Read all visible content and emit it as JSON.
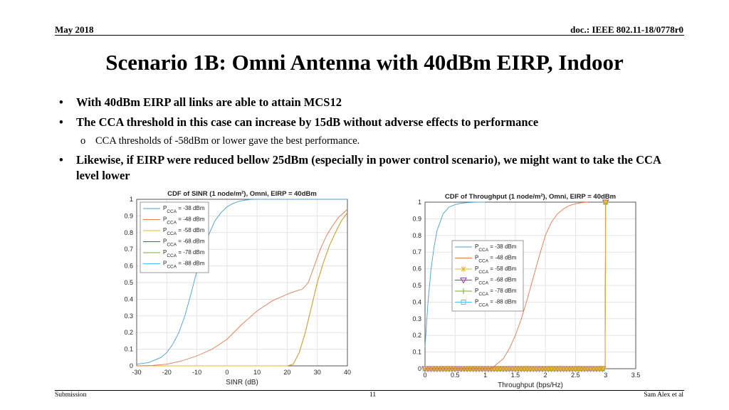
{
  "header": {
    "left": "May 2018",
    "right": "doc.: IEEE 802.11-18/0778r0"
  },
  "title": "Scenario 1B: Omni Antenna with 40dBm EIRP, Indoor",
  "bullets": [
    {
      "marker": "•",
      "text": "With 40dBm EIRP all links are able to attain MCS12"
    },
    {
      "marker": "•",
      "text": "The CCA threshold in this case can increase by 15dB without adverse effects to performance"
    },
    {
      "marker": "o",
      "text": "CCA thresholds of -58dBm or lower gave the best performance."
    },
    {
      "marker": "•",
      "text": "Likewise, if EIRP were reduced bellow 25dBm (especially in power control scenario), we might want to take the CCA level lower"
    }
  ],
  "footer": {
    "left": "Submission",
    "page": "11",
    "right": "Sam Alex et al"
  },
  "colors": [
    "#4c9ed1",
    "#e07b4f",
    "#e6b72b",
    "#8a3fa0",
    "#77ac30",
    "#4dbeee"
  ],
  "chart_data": [
    {
      "type": "line",
      "title": "CDF of SINR (1 node/m²), Omni, EIRP = 40dBm",
      "xlabel": "SINR (dB)",
      "ylabel": "",
      "xlim": [
        -30,
        40
      ],
      "ylim": [
        0,
        1
      ],
      "xticks": [
        -30,
        -20,
        -10,
        0,
        10,
        20,
        30,
        40
      ],
      "yticks": [
        0,
        0.1,
        0.2,
        0.3,
        0.4,
        0.5,
        0.6,
        0.7,
        0.8,
        0.9,
        1
      ],
      "grid": true,
      "legend_position": "top-left",
      "series": [
        {
          "name": "P_CCA = -38 dBm",
          "label_main": "P",
          "label_sub": "CCA",
          "label_rest": " = -38 dBm",
          "x": [
            -30,
            -26,
            -22,
            -20,
            -18,
            -16,
            -14,
            -12,
            -10,
            -8,
            -6,
            -4,
            -2,
            0,
            2,
            4,
            6,
            8,
            10,
            15,
            20,
            30,
            40
          ],
          "y": [
            0.01,
            0.02,
            0.05,
            0.08,
            0.13,
            0.2,
            0.3,
            0.43,
            0.57,
            0.69,
            0.79,
            0.87,
            0.92,
            0.955,
            0.975,
            0.988,
            0.995,
            0.999,
            1,
            1,
            1,
            1,
            1
          ]
        },
        {
          "name": "P_CCA = -48 dBm",
          "label_main": "P",
          "label_sub": "CCA",
          "label_rest": " = -48 dBm",
          "x": [
            -30,
            -25,
            -20,
            -15,
            -10,
            -5,
            0,
            5,
            10,
            15,
            20,
            23,
            25,
            27,
            29,
            31,
            33,
            35,
            37,
            40
          ],
          "y": [
            0,
            0.002,
            0.01,
            0.03,
            0.06,
            0.1,
            0.16,
            0.25,
            0.33,
            0.39,
            0.43,
            0.45,
            0.46,
            0.5,
            0.6,
            0.7,
            0.78,
            0.84,
            0.89,
            0.94
          ]
        },
        {
          "name": "P_CCA = -58 dBm",
          "label_main": "P",
          "label_sub": "CCA",
          "label_rest": " = -58 dBm",
          "x": [
            -30,
            18,
            20,
            22,
            24,
            26,
            28,
            30,
            32,
            34,
            36,
            38,
            40
          ],
          "y": [
            0,
            0,
            0,
            0.01,
            0.08,
            0.2,
            0.35,
            0.5,
            0.62,
            0.72,
            0.8,
            0.87,
            0.92
          ]
        },
        {
          "name": "P_CCA = -68 dBm",
          "label_main": "P",
          "label_sub": "CCA",
          "label_rest": " = -68 dBm",
          "x": [
            -30,
            18,
            20,
            22,
            24,
            26,
            28,
            30,
            32,
            34,
            36,
            38,
            40
          ],
          "y": [
            0,
            0,
            0,
            0.01,
            0.08,
            0.2,
            0.35,
            0.5,
            0.62,
            0.72,
            0.8,
            0.87,
            0.92
          ]
        },
        {
          "name": "P_CCA = -78 dBm",
          "label_main": "P",
          "label_sub": "CCA",
          "label_rest": " = -78 dBm",
          "x": [
            -30,
            18,
            20,
            22,
            24,
            26,
            28,
            30,
            32,
            34,
            36,
            38,
            40
          ],
          "y": [
            0,
            0,
            0,
            0.01,
            0.08,
            0.2,
            0.35,
            0.5,
            0.62,
            0.72,
            0.8,
            0.87,
            0.92
          ]
        },
        {
          "name": "P_CCA = -88 dBm",
          "label_main": "P",
          "label_sub": "CCA",
          "label_rest": " = -88 dBm",
          "x": [
            -30,
            18,
            20,
            22,
            24,
            26,
            28,
            30,
            32,
            34,
            36,
            38,
            40
          ],
          "y": [
            0,
            0,
            0,
            0.01,
            0.08,
            0.2,
            0.35,
            0.5,
            0.62,
            0.72,
            0.8,
            0.87,
            0.92
          ]
        }
      ]
    },
    {
      "type": "line",
      "title": "CDF of Throughput (1 node/m²), Omni, EIRP = 40dBm",
      "xlabel": "Throughput (bps/Hz)",
      "ylabel": "",
      "xlim": [
        0,
        3.5
      ],
      "ylim": [
        0,
        1
      ],
      "xticks": [
        0,
        0.5,
        1,
        1.5,
        2,
        2.5,
        3,
        3.5
      ],
      "yticks": [
        0,
        0.1,
        0.2,
        0.3,
        0.4,
        0.5,
        0.6,
        0.7,
        0.8,
        0.9,
        1
      ],
      "grid": true,
      "legend_position": "center-left",
      "series": [
        {
          "name": "P_CCA = -38 dBm",
          "label_main": "P",
          "label_sub": "CCA",
          "label_rest": " = -38 dBm",
          "marker": "none",
          "x": [
            0,
            0.05,
            0.1,
            0.15,
            0.2,
            0.3,
            0.4,
            0.5,
            0.6,
            0.7,
            0.8,
            0.9,
            1
          ],
          "y": [
            0.13,
            0.4,
            0.6,
            0.73,
            0.83,
            0.93,
            0.97,
            0.985,
            0.993,
            0.997,
            0.999,
            1,
            1
          ]
        },
        {
          "name": "P_CCA = -48 dBm",
          "label_main": "P",
          "label_sub": "CCA",
          "label_rest": " = -48 dBm",
          "marker": "none",
          "x": [
            0,
            1.1,
            1.2,
            1.3,
            1.4,
            1.5,
            1.6,
            1.7,
            1.8,
            1.9,
            2,
            2.1,
            2.2,
            2.3,
            2.4,
            2.5,
            2.6,
            2.7
          ],
          "y": [
            0,
            0,
            0.03,
            0.06,
            0.12,
            0.2,
            0.3,
            0.42,
            0.55,
            0.68,
            0.8,
            0.88,
            0.93,
            0.96,
            0.98,
            0.99,
            0.997,
            1
          ]
        },
        {
          "name": "P_CCA = -58 dBm",
          "label_main": "P",
          "label_sub": "CCA",
          "label_rest": " = -58 dBm",
          "marker": "star",
          "x": [
            0,
            2.99,
            3,
            3.01
          ],
          "y": [
            0,
            0,
            1,
            1
          ]
        },
        {
          "name": "P_CCA = -68 dBm",
          "label_main": "P",
          "label_sub": "CCA",
          "label_rest": " = -68 dBm",
          "marker": "triangle-down",
          "x": [
            0,
            2.99,
            3,
            3.01
          ],
          "y": [
            0,
            0,
            1,
            1
          ]
        },
        {
          "name": "P_CCA = -78 dBm",
          "label_main": "P",
          "label_sub": "CCA",
          "label_rest": " = -78 dBm",
          "marker": "plus",
          "x": [
            0,
            2.99,
            3,
            3.01
          ],
          "y": [
            0,
            0,
            1,
            1
          ]
        },
        {
          "name": "P_CCA = -88 dBm",
          "label_main": "P",
          "label_sub": "CCA",
          "label_rest": " = -88 dBm",
          "marker": "square",
          "x": [
            0,
            2.99,
            3,
            3.01
          ],
          "y": [
            0,
            0,
            1,
            1
          ]
        }
      ]
    }
  ]
}
